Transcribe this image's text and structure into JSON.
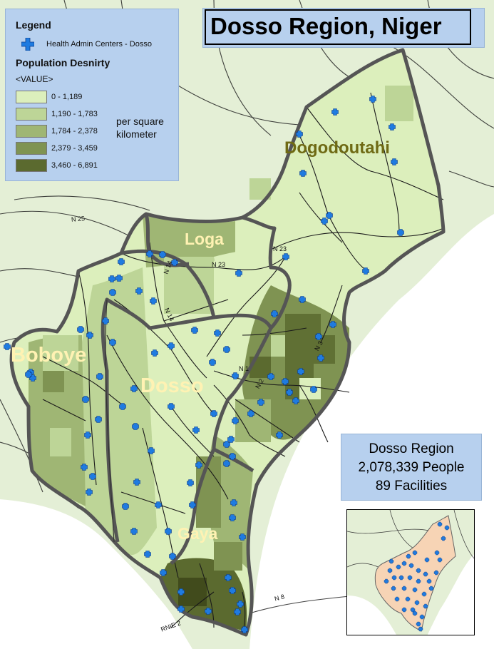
{
  "title": "Dosso Region, Niger",
  "legend": {
    "heading": "Legend",
    "centers_label": "Health Admin Centers - Dosso",
    "density_heading": "Population Desnirty",
    "value_label": "<VALUE>",
    "unit_line1": "per square",
    "unit_line2": "kilometer",
    "classes": [
      {
        "label": "0 - 1,189",
        "color": "#dcefbc"
      },
      {
        "label": "1,190 - 1,783",
        "color": "#bdd597"
      },
      {
        "label": "1,784 - 2,378",
        "color": "#9fb674"
      },
      {
        "label": "2,379 - 3,459",
        "color": "#7f9352"
      },
      {
        "label": "3,460 - 6,891",
        "color": "#5b6a2f"
      }
    ]
  },
  "districts": {
    "dogodoutahi": "Dogodoutahi",
    "loga": "Loga",
    "boboye": "Boboye",
    "dosso": "Dosso",
    "gaya": "Gaya"
  },
  "roads": {
    "n25": "N 25",
    "n14": "N 14",
    "n23a": "N 23",
    "n23b": "N 23",
    "n1": "N 1",
    "n2": "N 2",
    "n3": "N 3",
    "n8": "N 8",
    "rnie2": "RNIE 2"
  },
  "stats": {
    "line1": "Dosso Region",
    "line2": "2,078,339 People",
    "line3": "89 Facilities"
  },
  "colors": {
    "marker": "#1f7be0",
    "outside": "#e8f2dc",
    "river": "#ffffff",
    "border": "#555555",
    "label_pale": "#fff2b3",
    "label_olive": "#6f6a14"
  }
}
